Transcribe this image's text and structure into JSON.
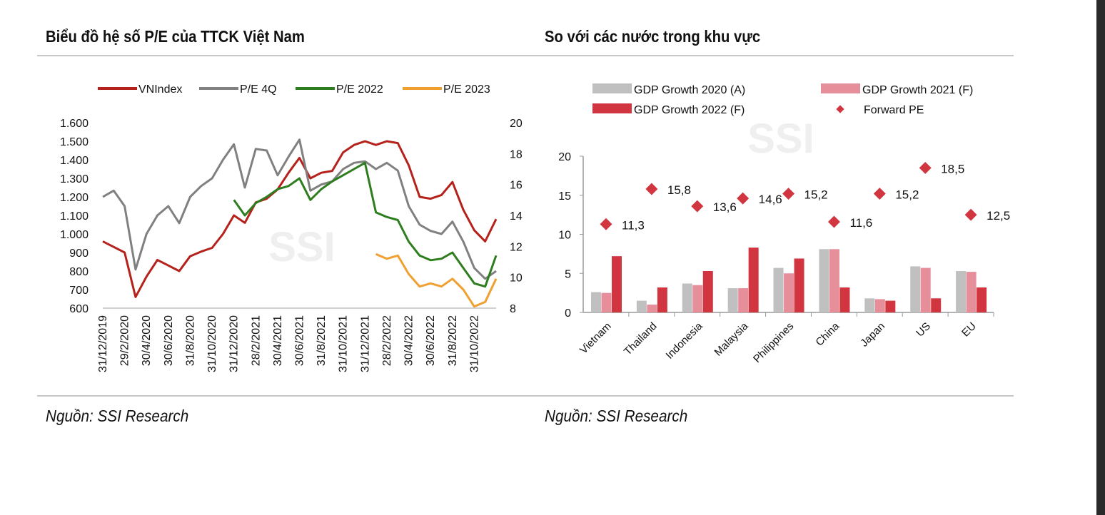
{
  "left": {
    "title": "Biểu đồ hệ số P/E của TTCK Việt Nam",
    "source": "Nguồn: SSI Research"
  },
  "right": {
    "title": "So với các nước trong khu vực",
    "source": "Nguồn: SSI Research"
  },
  "watermark": "SSI",
  "chart_data": [
    {
      "type": "line",
      "legend_position": "top",
      "y_left": {
        "lim": [
          600,
          1600
        ],
        "ticks": [
          "600",
          "700",
          "800",
          "900",
          "1.000",
          "1.100",
          "1.200",
          "1.300",
          "1.400",
          "1.500",
          "1.600"
        ]
      },
      "y_right": {
        "lim": [
          8,
          20
        ],
        "ticks": [
          "8",
          "10",
          "12",
          "14",
          "16",
          "18",
          "20"
        ]
      },
      "x_tick_labels": [
        "31/12/2019",
        "29/2/2020",
        "30/4/2020",
        "30/6/2020",
        "31/8/2020",
        "31/10/2020",
        "31/12/2020",
        "28/2/2021",
        "30/4/2021",
        "30/6/2021",
        "31/8/2021",
        "31/10/2021",
        "31/12/2021",
        "28/2/2022",
        "30/4/2022",
        "30/6/2022",
        "31/8/2022",
        "31/10/2022"
      ],
      "x": [
        "2019-12",
        "2020-01",
        "2020-02",
        "2020-03",
        "2020-04",
        "2020-05",
        "2020-06",
        "2020-07",
        "2020-08",
        "2020-09",
        "2020-10",
        "2020-11",
        "2020-12",
        "2021-01",
        "2021-02",
        "2021-03",
        "2021-04",
        "2021-05",
        "2021-06",
        "2021-07",
        "2021-08",
        "2021-09",
        "2021-10",
        "2021-11",
        "2021-12",
        "2022-01",
        "2022-02",
        "2022-03",
        "2022-04",
        "2022-05",
        "2022-06",
        "2022-07",
        "2022-08",
        "2022-09",
        "2022-10",
        "2022-11",
        "2022-12"
      ],
      "series": [
        {
          "name": "VNIndex",
          "axis": "left",
          "color": "#b5211b",
          "values": [
            960,
            930,
            900,
            660,
            770,
            860,
            830,
            800,
            880,
            905,
            925,
            1000,
            1100,
            1060,
            1170,
            1190,
            1240,
            1330,
            1410,
            1300,
            1330,
            1340,
            1440,
            1480,
            1500,
            1480,
            1500,
            1490,
            1370,
            1200,
            1190,
            1210,
            1280,
            1130,
            1020,
            960,
            1080
          ]
        },
        {
          "name": "P/E 4Q",
          "axis": "right",
          "color": "#808080",
          "values": [
            15.2,
            15.6,
            14.6,
            10.5,
            12.8,
            14.0,
            14.6,
            13.5,
            15.2,
            15.9,
            16.4,
            17.6,
            18.6,
            15.8,
            18.3,
            18.2,
            16.6,
            17.8,
            18.9,
            15.6,
            16.0,
            16.2,
            17.0,
            17.4,
            17.5,
            17.0,
            17.4,
            16.9,
            14.6,
            13.4,
            13.0,
            12.8,
            13.6,
            12.3,
            10.6,
            9.9,
            10.4
          ]
        },
        {
          "name": "P/E 2022",
          "axis": "right",
          "color": "#2e7d1f",
          "values": [
            null,
            null,
            null,
            null,
            null,
            null,
            null,
            null,
            null,
            null,
            null,
            null,
            15.0,
            14.0,
            14.8,
            15.2,
            15.7,
            15.9,
            16.4,
            15.0,
            15.7,
            16.2,
            16.6,
            17.0,
            17.4,
            14.2,
            13.9,
            13.7,
            12.3,
            11.4,
            11.1,
            11.2,
            11.6,
            10.6,
            9.6,
            9.4,
            11.4
          ]
        },
        {
          "name": "P/E 2023",
          "axis": "right",
          "color": "#f0a030",
          "values": [
            null,
            null,
            null,
            null,
            null,
            null,
            null,
            null,
            null,
            null,
            null,
            null,
            null,
            null,
            null,
            null,
            null,
            null,
            null,
            null,
            null,
            null,
            null,
            null,
            null,
            11.5,
            11.2,
            11.4,
            10.2,
            9.4,
            9.6,
            9.4,
            9.9,
            9.2,
            8.1,
            8.4,
            9.9
          ]
        }
      ]
    },
    {
      "type": "bar",
      "legend_position": "top",
      "ylim": [
        0,
        20
      ],
      "y_ticks": [
        "0",
        "5",
        "10",
        "15",
        "20"
      ],
      "categories": [
        "Vietnam",
        "Thailand",
        "Indonesia",
        "Malaysia",
        "Philippines",
        "China",
        "Japan",
        "US",
        "EU"
      ],
      "series": [
        {
          "name": "GDP Growth 2020 (A)",
          "color": "#c0c0c0",
          "values": [
            2.6,
            1.5,
            3.7,
            3.1,
            5.7,
            8.1,
            1.8,
            5.9,
            5.3
          ]
        },
        {
          "name": "GDP Growth 2021 (F)",
          "color": "#e68f9a",
          "values": [
            2.5,
            1.0,
            3.5,
            3.1,
            5.0,
            8.1,
            1.7,
            5.7,
            5.2
          ]
        },
        {
          "name": "GDP Growth 2022 (F)",
          "color": "#d13540",
          "values": [
            7.2,
            3.2,
            5.3,
            8.3,
            6.9,
            3.2,
            1.5,
            1.8,
            3.2
          ]
        },
        {
          "name": "Forward PE",
          "type": "scatter",
          "marker": "diamond",
          "color": "#d13540",
          "values": [
            11.3,
            15.8,
            13.6,
            14.6,
            15.2,
            11.6,
            15.2,
            18.5,
            12.5
          ],
          "labels": [
            "11,3",
            "15,8",
            "13,6",
            "14,6",
            "15,2",
            "11,6",
            "15,2",
            "18,5",
            "12,5"
          ]
        }
      ]
    }
  ]
}
